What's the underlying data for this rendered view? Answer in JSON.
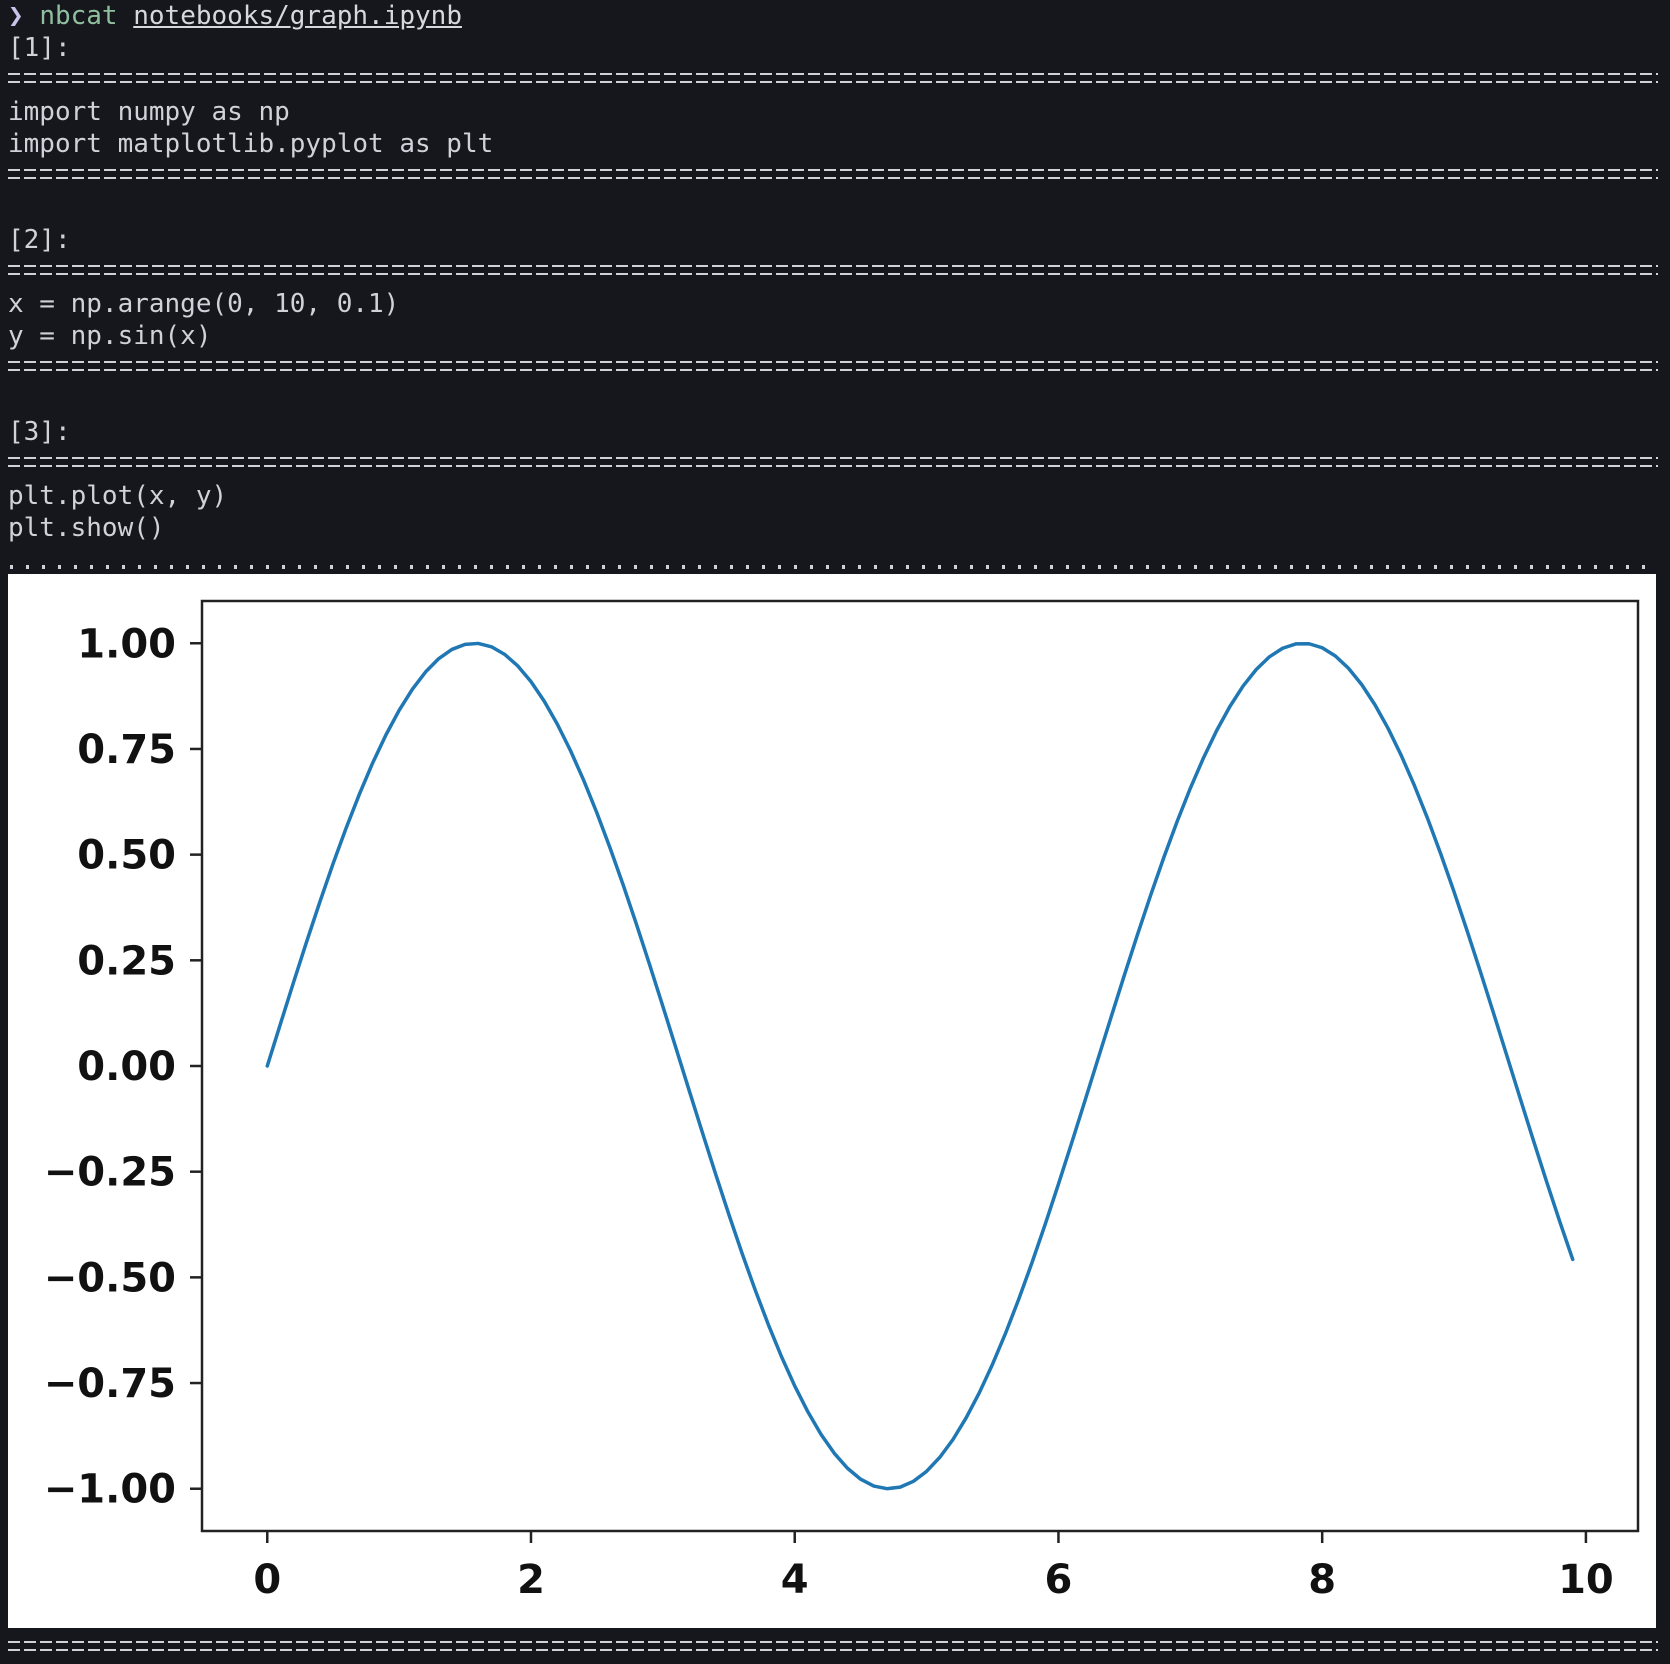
{
  "prompt": {
    "symbol": "❯",
    "command": "nbcat",
    "argument": "notebooks/graph.ipynb"
  },
  "cells": [
    {
      "label": "[1]:",
      "code": [
        "import numpy as np",
        "import matplotlib.pyplot as plt"
      ]
    },
    {
      "label": "[2]:",
      "code": [
        "x = np.arange(0, 10, 0.1)",
        "y = np.sin(x)"
      ]
    },
    {
      "label": "[3]:",
      "code": [
        "plt.plot(x, y)",
        "plt.show()"
      ]
    }
  ],
  "colors": {
    "background": "#16171d",
    "text": "#cfd2d8",
    "command": "#8fbf9f",
    "prompt_symbol": "#c9c3ea",
    "series": "#1f77b4"
  },
  "chart_data": {
    "type": "line",
    "function": "y = sin(x)",
    "x_range": [
      0,
      9.9
    ],
    "x_step": 0.1,
    "series": [
      {
        "x": [
          0,
          0.1,
          0.2,
          0.3,
          0.4,
          0.5,
          0.6,
          0.7,
          0.8,
          0.9,
          1.0,
          1.1,
          1.2,
          1.3,
          1.4,
          1.5,
          1.6,
          1.7,
          1.8,
          1.9,
          2.0,
          2.1,
          2.2,
          2.3,
          2.4,
          2.5,
          2.6,
          2.7,
          2.8,
          2.9,
          3.0,
          3.1,
          3.2,
          3.3,
          3.4,
          3.5,
          3.6,
          3.7,
          3.8,
          3.9,
          4.0,
          4.1,
          4.2,
          4.3,
          4.4,
          4.5,
          4.6,
          4.7,
          4.8,
          4.9,
          5.0,
          5.1,
          5.2,
          5.3,
          5.4,
          5.5,
          5.6,
          5.7,
          5.8,
          5.9,
          6.0,
          6.1,
          6.2,
          6.3,
          6.4,
          6.5,
          6.6,
          6.7,
          6.8,
          6.9,
          7.0,
          7.1,
          7.2,
          7.3,
          7.4,
          7.5,
          7.6,
          7.7,
          7.8,
          7.9,
          8.0,
          8.1,
          8.2,
          8.3,
          8.4,
          8.5,
          8.6,
          8.7,
          8.8,
          8.9,
          9.0,
          9.1,
          9.2,
          9.3,
          9.4,
          9.5,
          9.6,
          9.7,
          9.8,
          9.9
        ],
        "y": [
          0,
          0.0998,
          0.1987,
          0.2955,
          0.3894,
          0.4794,
          0.5646,
          0.6442,
          0.7174,
          0.7833,
          0.8415,
          0.8912,
          0.932,
          0.9636,
          0.9854,
          0.9975,
          0.9996,
          0.9917,
          0.9738,
          0.9463,
          0.9093,
          0.8632,
          0.8085,
          0.7457,
          0.6755,
          0.5985,
          0.5155,
          0.4274,
          0.335,
          0.2392,
          0.1411,
          0.0416,
          -0.0584,
          -0.1577,
          -0.2555,
          -0.3508,
          -0.4425,
          -0.5298,
          -0.6119,
          -0.6878,
          -0.7568,
          -0.8183,
          -0.8716,
          -0.9162,
          -0.9516,
          -0.9775,
          -0.9937,
          -0.9999,
          -0.9962,
          -0.9825,
          -0.9589,
          -0.9258,
          -0.8835,
          -0.8323,
          -0.7728,
          -0.7055,
          -0.6313,
          -0.5507,
          -0.4646,
          -0.3739,
          -0.2794,
          -0.1822,
          -0.0831,
          0.0168,
          0.1165,
          0.2151,
          0.3115,
          0.4048,
          0.4941,
          0.5784,
          0.657,
          0.729,
          0.7937,
          0.8504,
          0.8987,
          0.938,
          0.968,
          0.9882,
          0.9985,
          0.9989,
          0.9894,
          0.9699,
          0.9407,
          0.9022,
          0.8546,
          0.7985,
          0.7344,
          0.663,
          0.585,
          0.501,
          0.4121,
          0.319,
          0.2229,
          0.1245,
          0.0248,
          -0.0752,
          -0.1743,
          -0.2718,
          -0.3665,
          -0.4575
        ]
      }
    ],
    "xlim": [
      -0.495,
      10.395
    ],
    "ylim": [
      -1.1,
      1.1
    ],
    "xticks": [
      0,
      2,
      4,
      6,
      8,
      10
    ],
    "xtick_labels": [
      "0",
      "2",
      "4",
      "6",
      "8",
      "10"
    ],
    "yticks": [
      1.0,
      0.75,
      0.5,
      0.25,
      0.0,
      -0.25,
      -0.5,
      -0.75,
      -1.0
    ],
    "ytick_labels": [
      "1.00",
      "0.75",
      "0.50",
      "0.25",
      "0.00",
      "−0.25",
      "−0.50",
      "−0.75",
      "−1.00"
    ],
    "grid": false,
    "legend": "none"
  }
}
